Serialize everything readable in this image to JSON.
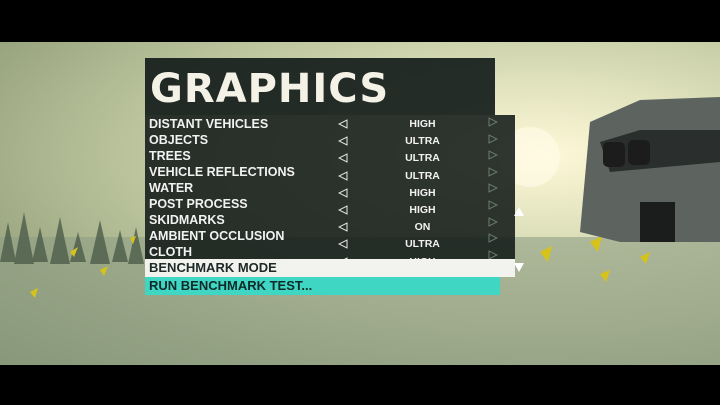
{
  "menu": {
    "title": "GRAPHICS",
    "settings": [
      {
        "name": "DISTANT VEHICLES",
        "value": "HIGH"
      },
      {
        "name": "OBJECTS",
        "value": "ULTRA"
      },
      {
        "name": "TREES",
        "value": "ULTRA"
      },
      {
        "name": "VEHICLE REFLECTIONS",
        "value": "ULTRA"
      },
      {
        "name": "WATER",
        "value": "HIGH"
      },
      {
        "name": "POST PROCESS",
        "value": "HIGH"
      },
      {
        "name": "SKIDMARKS",
        "value": "ON"
      },
      {
        "name": "AMBIENT OCCLUSION",
        "value": "ULTRA"
      },
      {
        "name": "CLOTH",
        "value": "HIGH"
      }
    ],
    "actions": [
      "BENCHMARK MODE",
      "RUN BENCHMARK TEST..."
    ]
  }
}
